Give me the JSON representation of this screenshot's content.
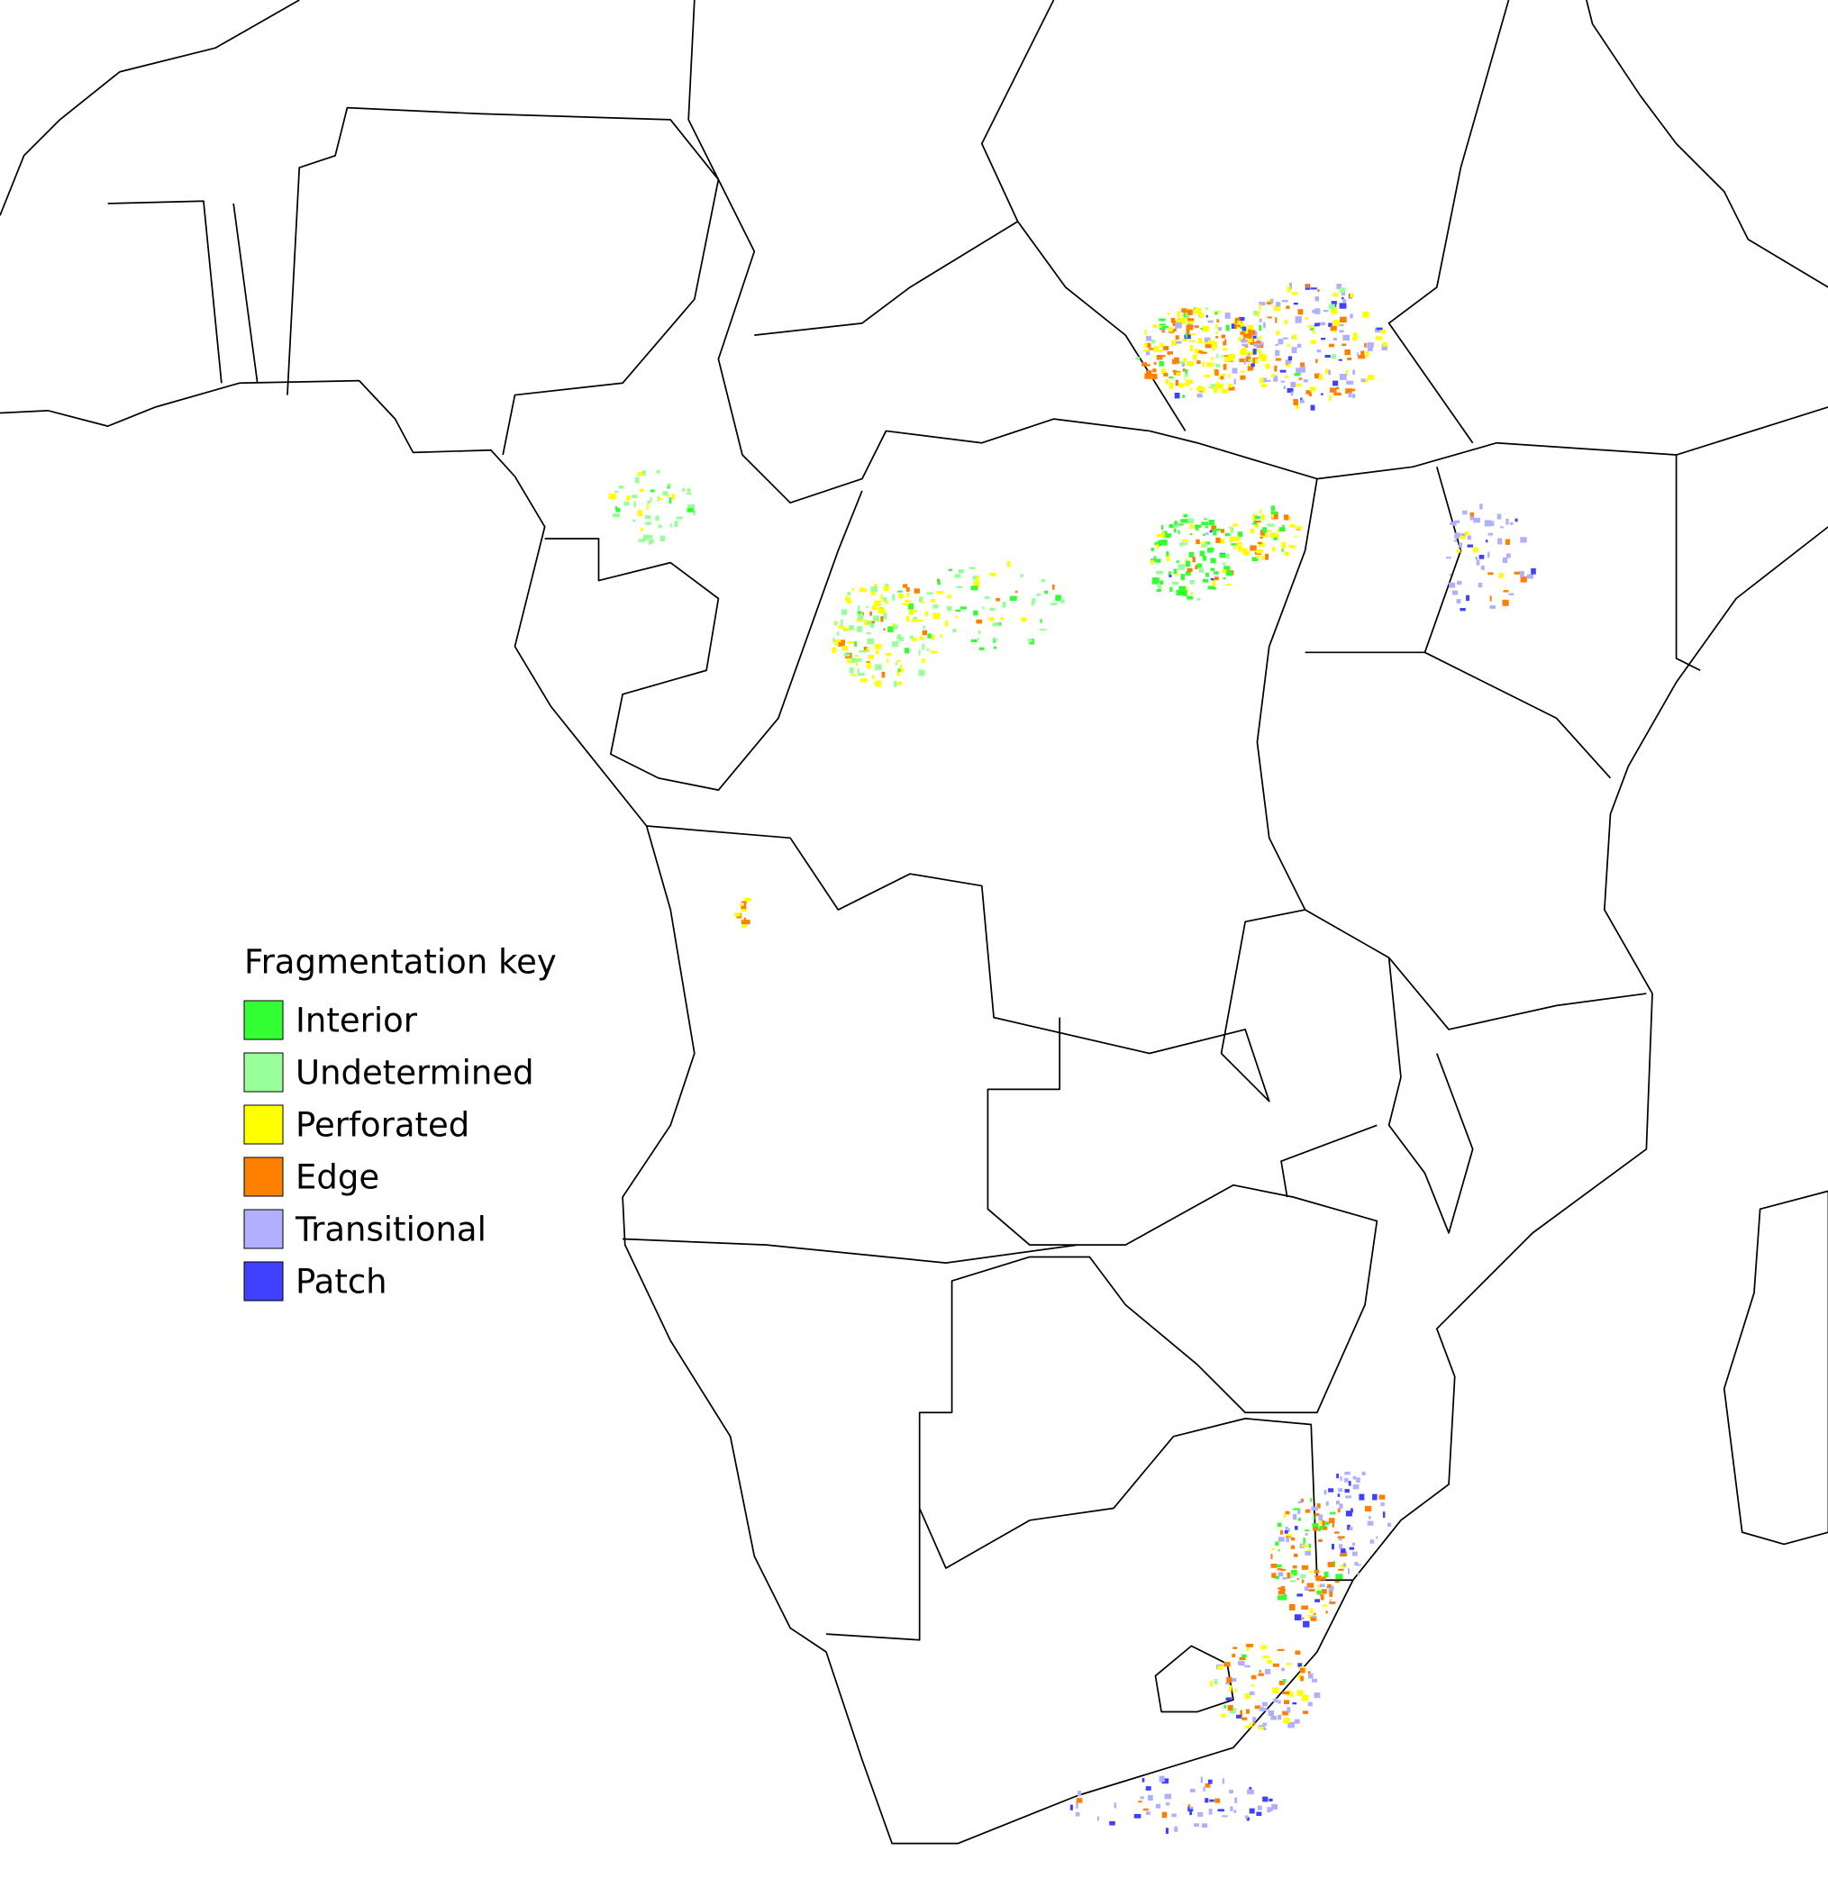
{
  "legend": {
    "title": "Fragmentation key",
    "items": [
      {
        "label": "Interior",
        "color": "#33ff33"
      },
      {
        "label": "Undetermined",
        "color": "#99ff99"
      },
      {
        "label": "Perforated",
        "color": "#ffff00"
      },
      {
        "label": "Edge",
        "color": "#ff8000"
      },
      {
        "label": "Transitional",
        "color": "#b0b0ff"
      },
      {
        "label": "Patch",
        "color": "#4040ff"
      }
    ]
  }
}
